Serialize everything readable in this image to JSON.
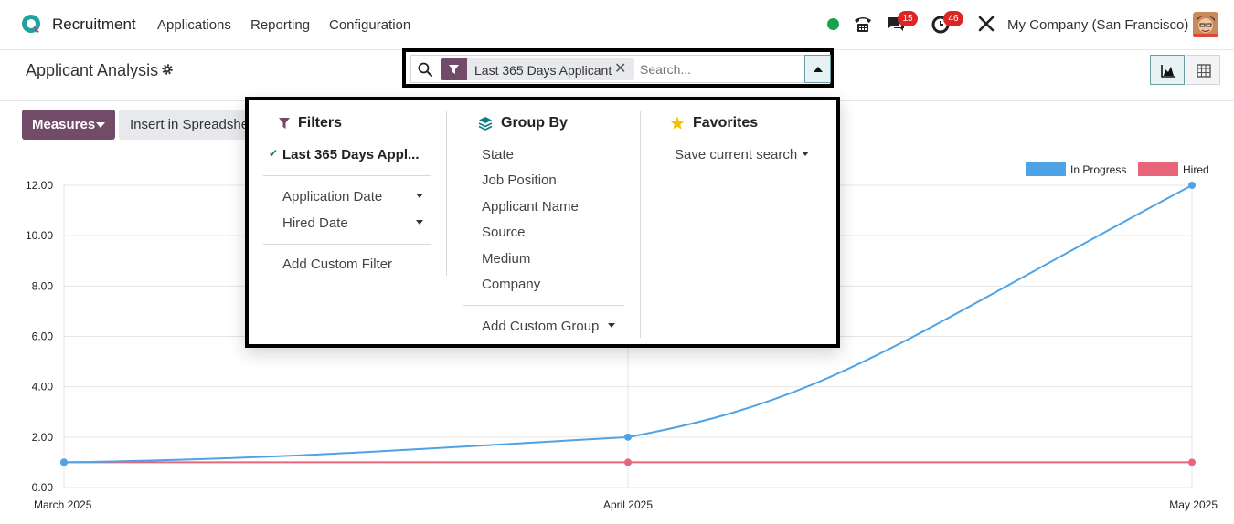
{
  "navbar": {
    "app_name": "Recruitment",
    "menu": [
      "Applications",
      "Reporting",
      "Configuration"
    ],
    "messages_count": "15",
    "activities_count": "46",
    "company": "My Company (San Francisco)"
  },
  "control_panel": {
    "title": "Applicant Analysis",
    "facet_label": "Last 365 Days Applicant",
    "search_placeholder": "Search...",
    "measures_label": "Measures",
    "insert_label": "Insert in Spreadsheet"
  },
  "dropdown": {
    "filters": {
      "title": "Filters",
      "active": "Last 365 Days Appl...",
      "items": [
        "Application Date",
        "Hired Date"
      ],
      "custom": "Add Custom Filter"
    },
    "group_by": {
      "title": "Group By",
      "items": [
        "State",
        "Job Position",
        "Applicant Name",
        "Source",
        "Medium",
        "Company"
      ],
      "custom": "Add Custom Group"
    },
    "favorites": {
      "title": "Favorites",
      "save": "Save current search"
    }
  },
  "colors": {
    "brand": "#714b67",
    "in_progress": "#4ea3e6",
    "hired": "#e8667a"
  },
  "chart_data": {
    "type": "line",
    "categories": [
      "March 2025",
      "April 2025",
      "May 2025"
    ],
    "series": [
      {
        "name": "In Progress",
        "values": [
          1,
          2,
          12
        ],
        "color": "#4ea3e6"
      },
      {
        "name": "Hired",
        "values": [
          1,
          1,
          1
        ],
        "color": "#e8667a"
      }
    ],
    "yticks": [
      "0.00",
      "2.00",
      "4.00",
      "6.00",
      "8.00",
      "10.00",
      "12.00"
    ],
    "ylim": [
      0,
      12
    ],
    "legend": "top-right",
    "grid": true
  }
}
